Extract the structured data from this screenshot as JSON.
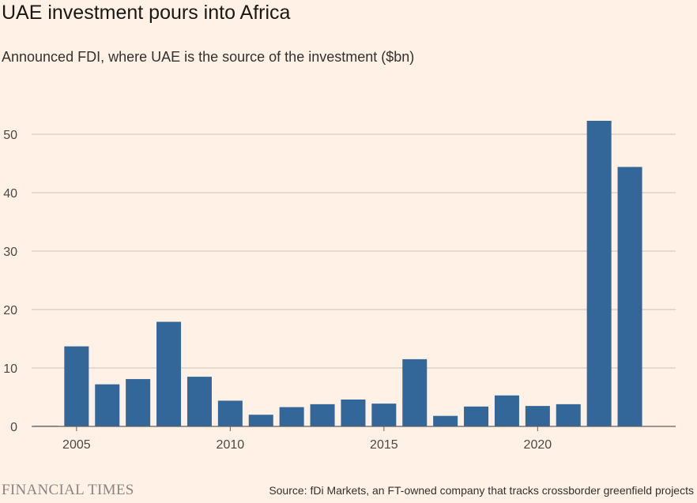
{
  "header": {
    "title": "UAE investment pours into Africa",
    "subtitle": "Announced FDI, where UAE is the source of the investment ($bn)"
  },
  "footer": {
    "brand": "FINANCIAL TIMES",
    "source": "Source: fDi Markets, an FT-owned company that tracks crossborder greenfield projects"
  },
  "colors": {
    "background": "#fff1e5",
    "bar": "#336699",
    "gridline": "#ccc1b7",
    "axis": "#66605c"
  },
  "chart_data": {
    "type": "bar",
    "title": "UAE investment pours into Africa",
    "subtitle": "Announced FDI, where UAE is the source of the investment ($bn)",
    "xlabel": "",
    "ylabel": "",
    "x": [
      2004,
      2005,
      2006,
      2007,
      2008,
      2009,
      2010,
      2011,
      2012,
      2013,
      2014,
      2015,
      2016,
      2017,
      2018,
      2019,
      2020,
      2021,
      2022,
      2023
    ],
    "values": [
      0.1,
      13.7,
      7.2,
      8.1,
      17.9,
      8.5,
      4.4,
      2.0,
      3.3,
      3.8,
      4.6,
      3.9,
      11.5,
      1.8,
      3.4,
      5.3,
      3.5,
      3.8,
      52.3,
      44.4
    ],
    "ylim": [
      0,
      55
    ],
    "yticks": [
      0,
      10,
      20,
      30,
      40,
      50
    ],
    "xticks": [
      2005,
      2010,
      2015,
      2020
    ],
    "grid": true,
    "legend": "none"
  }
}
